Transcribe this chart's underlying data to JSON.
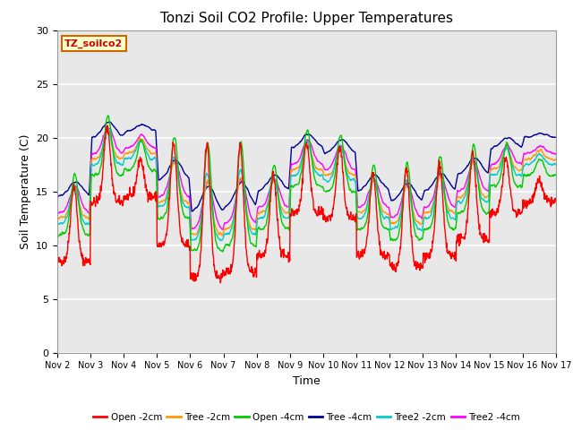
{
  "title": "Tonzi Soil CO2 Profile: Upper Temperatures",
  "xlabel": "Time",
  "ylabel": "Soil Temperature (C)",
  "ylim": [
    0,
    30
  ],
  "plot_bg": "#e8e8e8",
  "grid_color": "white",
  "series_colors": {
    "Open -2cm": "#ff0000",
    "Tree -2cm": "#ff9900",
    "Open -4cm": "#00cc00",
    "Tree -4cm": "#000099",
    "Tree2 -2cm": "#00cccc",
    "Tree2 -4cm": "#ff00ff"
  },
  "annotation_text": "TZ_soilco2",
  "annotation_color": "#cc0000",
  "annotation_bg": "#ffffcc",
  "annotation_border": "#cc6600",
  "tick_labels": [
    "Nov 2",
    "Nov 3",
    "Nov 4",
    "Nov 5",
    "Nov 6",
    "Nov 7",
    "Nov 8",
    "Nov 9",
    "Nov 10",
    "Nov 11",
    "Nov 12",
    "Nov 13",
    "Nov 14",
    "Nov 15",
    "Nov 16",
    "Nov 17"
  ],
  "legend_items": [
    "Open -2cm",
    "Tree -2cm",
    "Open -4cm",
    "Tree -4cm",
    "Tree2 -2cm",
    "Tree2 -4cm"
  ],
  "linewidth": 1.0
}
